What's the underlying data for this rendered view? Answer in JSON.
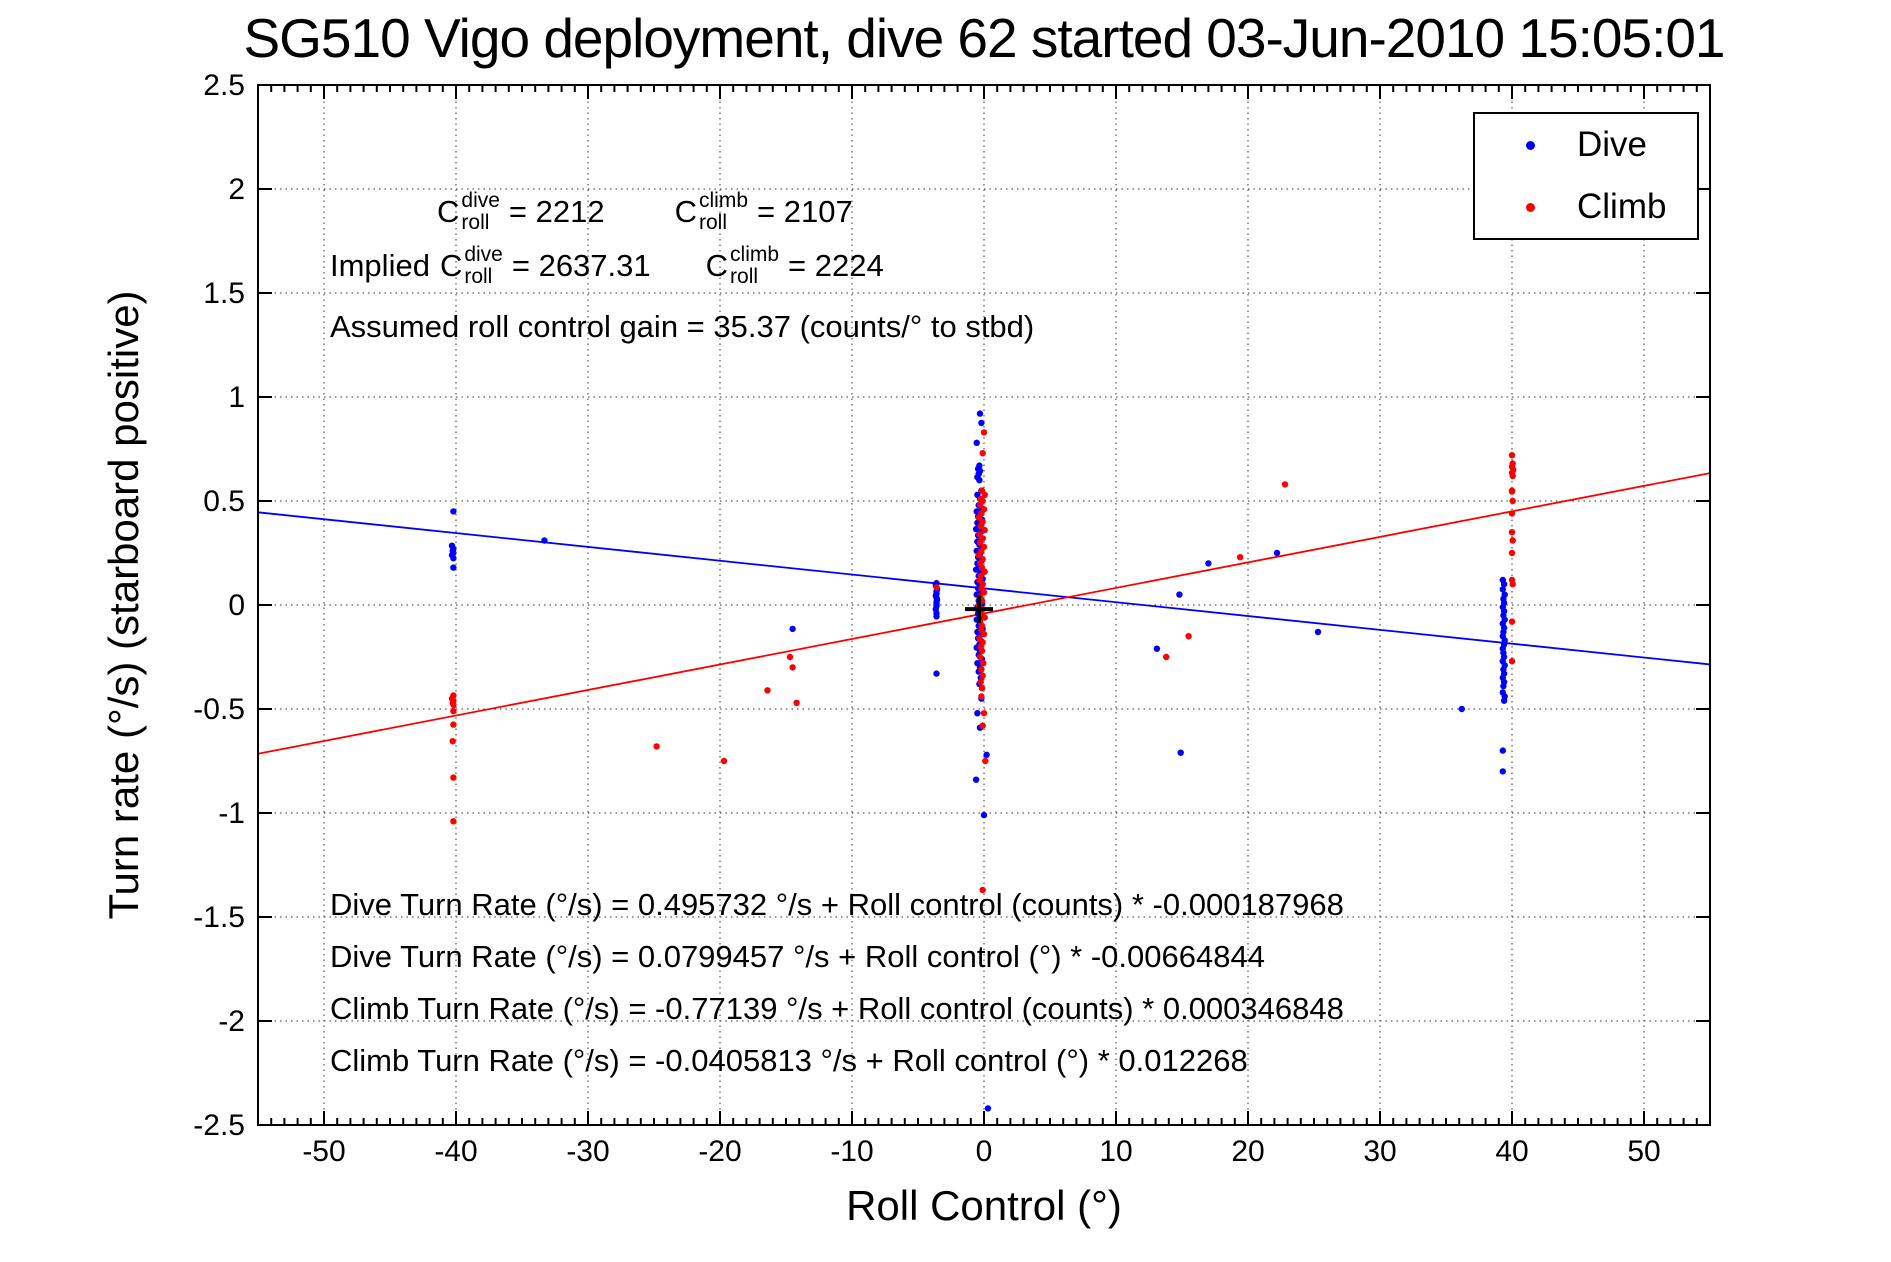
{
  "chart_data": {
    "type": "scatter",
    "title": "SG510 Vigo deployment, dive 62 started 03-Jun-2010 15:05:01",
    "xlabel": "Roll Control (°)",
    "ylabel": "Turn rate (°/s) (starboard positive)",
    "xlim": [
      -55,
      55
    ],
    "ylim": [
      -2.5,
      2.5
    ],
    "xticks": [
      -50,
      -40,
      -30,
      -20,
      -10,
      0,
      10,
      20,
      30,
      40,
      50
    ],
    "yticks": [
      2.5,
      2,
      1.5,
      1,
      0.5,
      0,
      -0.5,
      -1,
      -1.5,
      -2,
      -2.5
    ],
    "grid": "dotted",
    "legend": {
      "position": "top-right",
      "entries": [
        {
          "label": "Dive",
          "color": "#0000ff"
        },
        {
          "label": "Climb",
          "color": "#ff0000"
        }
      ]
    },
    "annotations": {
      "c_dive": {
        "base": "C",
        "sup": "dive",
        "sub": "roll",
        "value": "= 2212"
      },
      "c_climb": {
        "base": "C",
        "sup": "climb",
        "sub": "roll",
        "value": "= 2107"
      },
      "implied_prefix": "Implied",
      "implied_c_dive": {
        "base": "C",
        "sup": "dive",
        "sub": "roll",
        "value": "= 2637.31"
      },
      "implied_c_climb": {
        "base": "C",
        "sup": "climb",
        "sub": "roll",
        "value": "= 2224"
      },
      "gain": "Assumed roll control gain = 35.37 (counts/° to stbd)",
      "equations": [
        "Dive Turn Rate (°/s) = 0.495732 °/s + Roll control (counts) * -0.000187968",
        "Dive Turn Rate (°/s) = 0.0799457 °/s + Roll control (°) * -0.00664844",
        "Climb Turn Rate (°/s) = -0.77139 °/s + Roll control (counts) * 0.000346848",
        "Climb Turn Rate (°/s) = -0.0405813 °/s + Roll control (°) * 0.012268"
      ]
    },
    "fit_lines": [
      {
        "name": "dive-fit",
        "color": "#0000ff",
        "intercept": 0.0799457,
        "slope": -0.00664844
      },
      {
        "name": "climb-fit",
        "color": "#ff0000",
        "intercept": -0.0405813,
        "slope": 0.012268
      }
    ],
    "origin_marker": {
      "x": -0.38,
      "y": -0.02,
      "color": "#000000"
    },
    "series": [
      {
        "name": "Dive",
        "color": "#0000ff",
        "points": [
          [
            -40.2,
            0.45
          ],
          [
            -40.3,
            0.285
          ],
          [
            -40.2,
            0.27
          ],
          [
            -40.25,
            0.26
          ],
          [
            -40.2,
            0.25
          ],
          [
            -40.3,
            0.24
          ],
          [
            -40.2,
            0.225
          ],
          [
            -40.2,
            0.18
          ],
          [
            -33.3,
            0.31
          ],
          [
            -3.6,
            0.105
          ],
          [
            -3.65,
            0.095
          ],
          [
            -3.6,
            0.085
          ],
          [
            -3.55,
            0.075
          ],
          [
            -3.6,
            0.065
          ],
          [
            -3.6,
            0.055
          ],
          [
            -3.65,
            0.045
          ],
          [
            -3.6,
            0.035
          ],
          [
            -3.55,
            0.025
          ],
          [
            -3.6,
            0.015
          ],
          [
            -3.6,
            0.005
          ],
          [
            -3.6,
            -0.005
          ],
          [
            -3.65,
            -0.02
          ],
          [
            -3.6,
            -0.04
          ],
          [
            -3.6,
            -0.055
          ],
          [
            -3.6,
            -0.33
          ],
          [
            -14.5,
            -0.115
          ],
          [
            13.1,
            -0.21
          ],
          [
            14.8,
            0.05
          ],
          [
            14.9,
            -0.71
          ],
          [
            17.0,
            0.2
          ],
          [
            22.2,
            0.25
          ],
          [
            25.3,
            -0.13
          ],
          [
            0.3,
            -2.42
          ],
          [
            -0.3,
            0.92
          ],
          [
            -0.2,
            0.875
          ],
          [
            -0.55,
            0.78
          ],
          [
            -0.35,
            0.67
          ],
          [
            -0.45,
            0.655
          ],
          [
            -0.3,
            0.645
          ],
          [
            -0.4,
            0.63
          ],
          [
            -0.5,
            0.615
          ],
          [
            -0.35,
            0.6
          ],
          [
            -0.2,
            0.55
          ],
          [
            -0.5,
            0.53
          ],
          [
            -0.3,
            0.51
          ],
          [
            -0.4,
            0.48
          ],
          [
            -0.2,
            0.465
          ],
          [
            -0.55,
            0.45
          ],
          [
            -0.3,
            0.44
          ],
          [
            -0.45,
            0.425
          ],
          [
            -0.15,
            0.41
          ],
          [
            -0.5,
            0.395
          ],
          [
            -0.3,
            0.38
          ],
          [
            -0.6,
            0.365
          ],
          [
            -0.25,
            0.35
          ],
          [
            -0.45,
            0.335
          ],
          [
            -0.1,
            0.32
          ],
          [
            -0.5,
            0.305
          ],
          [
            -0.35,
            0.29
          ],
          [
            -0.2,
            0.275
          ],
          [
            -0.55,
            0.26
          ],
          [
            -0.3,
            0.245
          ],
          [
            -0.45,
            0.23
          ],
          [
            -0.15,
            0.215
          ],
          [
            -0.5,
            0.2
          ],
          [
            -0.3,
            0.185
          ],
          [
            -0.6,
            0.17
          ],
          [
            -0.25,
            0.155
          ],
          [
            -0.4,
            0.14
          ],
          [
            -0.1,
            0.125
          ],
          [
            -0.5,
            0.11
          ],
          [
            -0.3,
            0.095
          ],
          [
            -0.45,
            0.08
          ],
          [
            -0.2,
            0.065
          ],
          [
            -0.55,
            0.05
          ],
          [
            -0.3,
            0.035
          ],
          [
            -0.4,
            0.02
          ],
          [
            -0.15,
            0.005
          ],
          [
            -0.5,
            -0.01
          ],
          [
            -0.3,
            -0.025
          ],
          [
            -0.45,
            -0.04
          ],
          [
            -0.2,
            -0.055
          ],
          [
            -0.55,
            -0.07
          ],
          [
            -0.3,
            -0.085
          ],
          [
            -0.4,
            -0.1
          ],
          [
            -0.1,
            -0.115
          ],
          [
            -0.5,
            -0.13
          ],
          [
            -0.3,
            -0.145
          ],
          [
            -0.45,
            -0.16
          ],
          [
            -0.2,
            -0.175
          ],
          [
            -0.35,
            -0.19
          ],
          [
            -0.55,
            -0.205
          ],
          [
            -0.3,
            -0.22
          ],
          [
            -0.4,
            -0.24
          ],
          [
            -0.15,
            -0.26
          ],
          [
            -0.5,
            -0.28
          ],
          [
            -0.3,
            -0.3
          ],
          [
            -0.4,
            -0.32
          ],
          [
            -0.25,
            -0.35
          ],
          [
            -0.35,
            -0.38
          ],
          [
            -0.2,
            -0.45
          ],
          [
            -0.5,
            -0.52
          ],
          [
            -0.3,
            -0.59
          ],
          [
            0.2,
            -0.72
          ],
          [
            -0.6,
            -0.84
          ],
          [
            0.0,
            -1.01
          ],
          [
            39.3,
            0.12
          ],
          [
            39.4,
            0.1
          ],
          [
            39.3,
            0.075
          ],
          [
            39.45,
            0.05
          ],
          [
            39.35,
            0.03
          ],
          [
            39.4,
            0.01
          ],
          [
            39.3,
            -0.01
          ],
          [
            39.4,
            -0.03
          ],
          [
            39.35,
            -0.05
          ],
          [
            39.45,
            -0.07
          ],
          [
            39.3,
            -0.09
          ],
          [
            39.4,
            -0.11
          ],
          [
            39.35,
            -0.13
          ],
          [
            39.3,
            -0.15
          ],
          [
            39.45,
            -0.17
          ],
          [
            39.4,
            -0.19
          ],
          [
            39.3,
            -0.21
          ],
          [
            39.35,
            -0.23
          ],
          [
            39.4,
            -0.25
          ],
          [
            39.3,
            -0.27
          ],
          [
            39.45,
            -0.29
          ],
          [
            39.35,
            -0.31
          ],
          [
            39.4,
            -0.33
          ],
          [
            39.3,
            -0.35
          ],
          [
            39.4,
            -0.37
          ],
          [
            39.35,
            -0.39
          ],
          [
            39.3,
            -0.42
          ],
          [
            39.45,
            -0.44
          ],
          [
            39.4,
            -0.46
          ],
          [
            36.2,
            -0.5
          ],
          [
            39.3,
            -0.7
          ],
          [
            39.3,
            -0.8
          ]
        ]
      },
      {
        "name": "Climb",
        "color": "#ff0000",
        "points": [
          [
            -40.2,
            -0.435
          ],
          [
            -40.3,
            -0.45
          ],
          [
            -40.2,
            -0.46
          ],
          [
            -40.25,
            -0.47
          ],
          [
            -40.2,
            -0.48
          ],
          [
            -40.2,
            -0.51
          ],
          [
            -40.2,
            -0.575
          ],
          [
            -40.25,
            -0.655
          ],
          [
            -40.2,
            -0.83
          ],
          [
            -40.2,
            -1.04
          ],
          [
            -24.8,
            -0.68
          ],
          [
            -19.7,
            -0.75
          ],
          [
            -16.4,
            -0.41
          ],
          [
            -14.7,
            -0.25
          ],
          [
            -14.5,
            -0.3
          ],
          [
            -14.2,
            -0.47
          ],
          [
            -3.6,
            0.085
          ],
          [
            0.0,
            0.83
          ],
          [
            -0.1,
            0.73
          ],
          [
            -0.15,
            0.55
          ],
          [
            0.05,
            0.53
          ],
          [
            -0.25,
            0.51
          ],
          [
            -0.1,
            0.5
          ],
          [
            -0.3,
            0.48
          ],
          [
            0.0,
            0.46
          ],
          [
            -0.2,
            0.44
          ],
          [
            -0.4,
            0.42
          ],
          [
            -0.1,
            0.4
          ],
          [
            -0.25,
            0.38
          ],
          [
            0.05,
            0.36
          ],
          [
            -0.35,
            0.34
          ],
          [
            -0.15,
            0.32
          ],
          [
            -0.3,
            0.3
          ],
          [
            0.0,
            0.28
          ],
          [
            -0.2,
            0.26
          ],
          [
            -0.4,
            0.24
          ],
          [
            -0.1,
            0.22
          ],
          [
            -0.3,
            0.2
          ],
          [
            -0.15,
            0.18
          ],
          [
            0.05,
            0.16
          ],
          [
            -0.25,
            0.14
          ],
          [
            -0.35,
            0.12
          ],
          [
            -0.1,
            0.1
          ],
          [
            -0.2,
            0.08
          ],
          [
            0.0,
            0.06
          ],
          [
            -0.3,
            0.04
          ],
          [
            -0.15,
            0.02
          ],
          [
            -0.4,
            0.0
          ],
          [
            -0.1,
            -0.02
          ],
          [
            -0.25,
            -0.04
          ],
          [
            0.05,
            -0.06
          ],
          [
            -0.3,
            -0.08
          ],
          [
            -0.15,
            -0.1
          ],
          [
            -0.2,
            -0.12
          ],
          [
            0.0,
            -0.14
          ],
          [
            -0.35,
            -0.16
          ],
          [
            -0.1,
            -0.18
          ],
          [
            -0.25,
            -0.2
          ],
          [
            -0.15,
            -0.22
          ],
          [
            -0.3,
            -0.25
          ],
          [
            -0.05,
            -0.28
          ],
          [
            -0.2,
            -0.31
          ],
          [
            -0.1,
            -0.34
          ],
          [
            -0.25,
            -0.37
          ],
          [
            -0.15,
            -0.4
          ],
          [
            -0.2,
            -0.44
          ],
          [
            0.0,
            -0.52
          ],
          [
            -0.1,
            -0.58
          ],
          [
            0.1,
            -0.75
          ],
          [
            -0.1,
            -1.37
          ],
          [
            13.8,
            -0.25
          ],
          [
            15.5,
            -0.15
          ],
          [
            19.4,
            0.23
          ],
          [
            22.8,
            0.58
          ],
          [
            40.0,
            0.72
          ],
          [
            40.05,
            0.68
          ],
          [
            40.0,
            0.665
          ],
          [
            40.1,
            0.65
          ],
          [
            40.0,
            0.635
          ],
          [
            40.05,
            0.62
          ],
          [
            40.0,
            0.55
          ],
          [
            40.0,
            0.545
          ],
          [
            40.05,
            0.5
          ],
          [
            40.0,
            0.44
          ],
          [
            40.0,
            0.35
          ],
          [
            40.05,
            0.31
          ],
          [
            40.0,
            0.25
          ],
          [
            40.0,
            0.12
          ],
          [
            40.05,
            0.1
          ],
          [
            40.0,
            -0.08
          ],
          [
            40.0,
            -0.27
          ]
        ]
      }
    ]
  }
}
